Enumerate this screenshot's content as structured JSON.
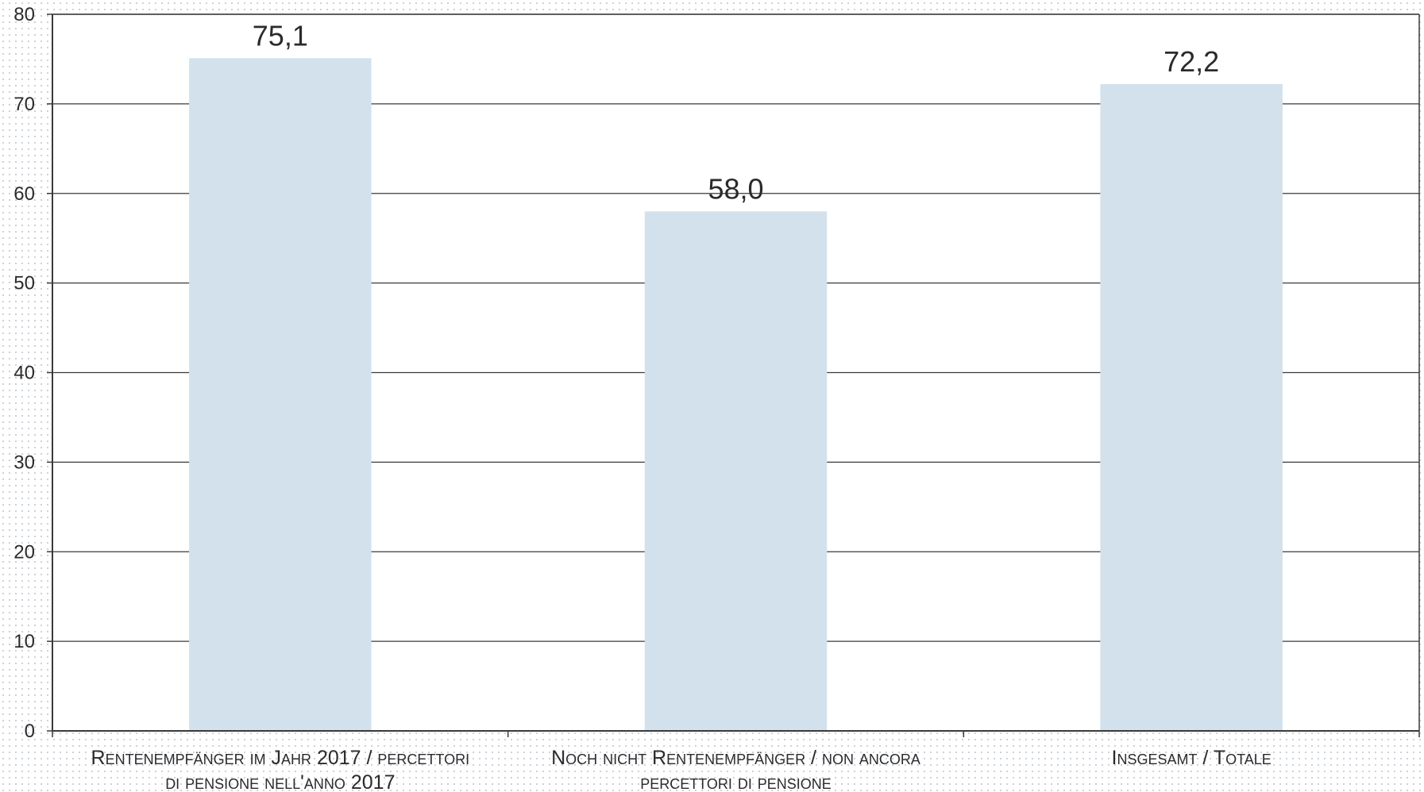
{
  "chart_data": {
    "type": "bar",
    "categories": [
      [
        "Rentenempfänger im Jahr 2017 /  percettori",
        "di pensione nell'anno 2017"
      ],
      [
        "Noch nicht Rentenempfänger / non ancora",
        "percettori di pensione"
      ],
      [
        "Insgesamt / Totale"
      ]
    ],
    "values": [
      75.1,
      58.0,
      72.2
    ],
    "data_labels": [
      "75,1",
      "58,0",
      "72,2"
    ],
    "title": "",
    "xlabel": "",
    "ylabel": "",
    "ylim": [
      0,
      80
    ],
    "yticks": [
      0,
      10,
      20,
      30,
      40,
      50,
      60,
      70,
      80
    ],
    "grid": true,
    "legend": "none",
    "colors": {
      "bar": "#d3e1ec",
      "grid": "#3a3a3a",
      "axis": "#3a3a3a"
    }
  }
}
